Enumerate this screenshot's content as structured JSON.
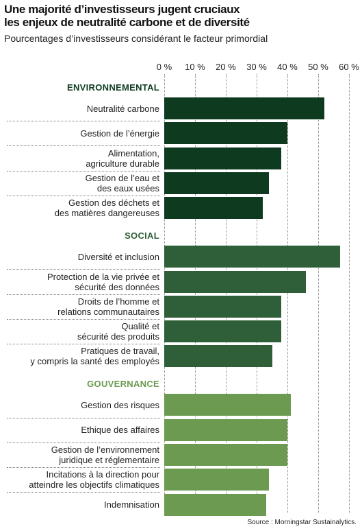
{
  "chart_data": {
    "type": "bar",
    "orientation": "horizontal",
    "title": "Une majorité d’investisseurs jugent cruciaux\nles enjeux de neutralité carbone et de diversité",
    "subtitle": "Pourcentages d’investisseurs considérant le facteur primordial",
    "source": "Source : Morningstar Sustainalytics.",
    "xlim": [
      0,
      60
    ],
    "xticks": [
      {
        "value": 0,
        "label": "0 %"
      },
      {
        "value": 10,
        "label": "10 %"
      },
      {
        "value": 20,
        "label": "20 %"
      },
      {
        "value": 30,
        "label": "30 %"
      },
      {
        "value": 40,
        "label": "40 %"
      },
      {
        "value": 50,
        "label": "50 %"
      },
      {
        "value": 60,
        "label": "60 %"
      }
    ],
    "grid": true,
    "groups": [
      {
        "name": "ENVIRONNEMENTAL",
        "color": "#0e3b20",
        "categories": [
          "Neutralité carbone",
          "Gestion de l’énergie",
          "Alimentation,\nagriculture durable",
          "Gestion de l’eau et\ndes eaux usées",
          "Gestion des déchets et\ndes matières dangereuses"
        ],
        "values": [
          52,
          40,
          38,
          34,
          32
        ]
      },
      {
        "name": "SOCIAL",
        "color": "#2f5f38",
        "categories": [
          "Diversité et inclusion",
          "Protection de la vie privée et\nsécurité des données",
          "Droits de l’homme et\nrelations communautaires",
          "Qualité et\nsécurité des produits",
          "Pratiques de travail,\ny compris la santé des employés"
        ],
        "values": [
          57,
          46,
          38,
          38,
          35
        ]
      },
      {
        "name": "GOUVERNANCE",
        "color": "#6b9a50",
        "categories": [
          "Gestion des risques",
          "Ethique des affaires",
          "Gestion de l’environnement\njuridique et réglementaire",
          "Incitations à la direction pour\natteindre les objectifs climatiques",
          "Indemnisation"
        ],
        "values": [
          41,
          40,
          40,
          34,
          33
        ]
      }
    ]
  }
}
